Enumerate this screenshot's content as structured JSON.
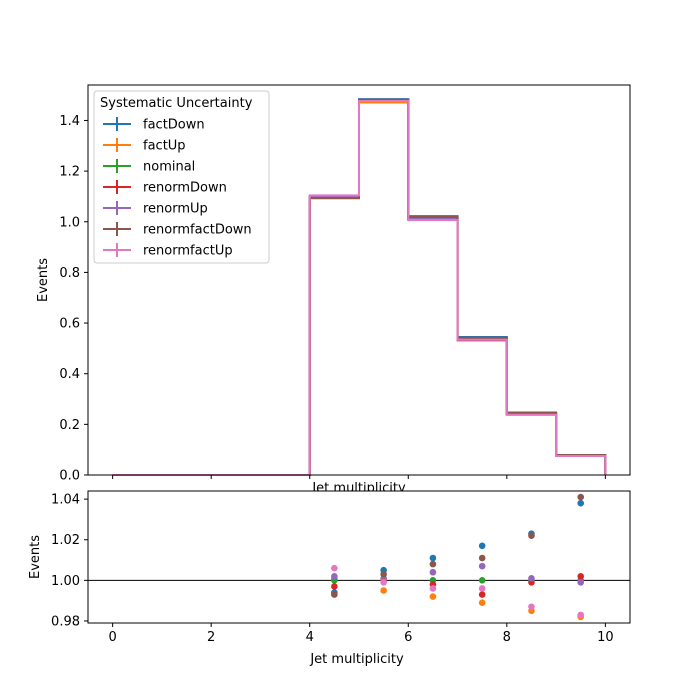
{
  "chart_data": [
    {
      "type": "step",
      "xlabel": "Jet multiplicity",
      "ylabel": "Events",
      "xlim": [
        -0.5,
        10.5
      ],
      "ylim": [
        0,
        1.54
      ],
      "xticks": [
        0,
        2,
        4,
        6,
        8,
        10
      ],
      "xtick_labels_visible": false,
      "yticks": [
        0.0,
        0.2,
        0.4,
        0.6,
        0.8,
        1.0,
        1.2,
        1.4
      ],
      "ytick_labels": [
        "0.0",
        "0.2",
        "0.4",
        "0.6",
        "0.8",
        "1.0",
        "1.2",
        "1.4"
      ],
      "bin_edges": [
        0,
        1,
        2,
        3,
        4,
        5,
        6,
        7,
        8,
        9,
        10
      ],
      "legend": {
        "title": "Systematic Uncertainty",
        "position": "top-left"
      },
      "series": [
        {
          "name": "factDown",
          "color": "#1f77b4",
          "values": [
            0,
            0,
            0,
            0,
            1.095,
            1.484,
            1.022,
            0.545,
            0.247,
            0.079
          ]
        },
        {
          "name": "factUp",
          "color": "#ff7f0e",
          "values": [
            0,
            0,
            0,
            0,
            1.099,
            1.471,
            1.009,
            0.532,
            0.238,
            0.075
          ]
        },
        {
          "name": "nominal",
          "color": "#2ca02c",
          "values": [
            0,
            0,
            0,
            0,
            1.098,
            1.478,
            1.011,
            0.536,
            0.241,
            0.076
          ]
        },
        {
          "name": "renormDown",
          "color": "#d62728",
          "values": [
            0,
            0,
            0,
            0,
            1.095,
            1.478,
            1.009,
            0.532,
            0.241,
            0.076
          ]
        },
        {
          "name": "renormUp",
          "color": "#9467bd",
          "values": [
            0,
            0,
            0,
            0,
            1.1,
            1.48,
            1.015,
            0.54,
            0.241,
            0.076
          ]
        },
        {
          "name": "renormfactDown",
          "color": "#8c564b",
          "values": [
            0,
            0,
            0,
            0,
            1.093,
            1.482,
            1.019,
            0.542,
            0.246,
            0.079
          ]
        },
        {
          "name": "renormfactUp",
          "color": "#e377c2",
          "values": [
            0,
            0,
            0,
            0,
            1.104,
            1.477,
            1.007,
            0.534,
            0.238,
            0.075
          ]
        }
      ]
    },
    {
      "type": "scatter",
      "xlabel": "Jet multiplicity",
      "ylabel": "Events",
      "xlim": [
        -0.5,
        10.5
      ],
      "ylim": [
        0.979,
        1.044
      ],
      "xticks": [
        0,
        2,
        4,
        6,
        8,
        10
      ],
      "xtick_labels": [
        "0",
        "2",
        "4",
        "6",
        "8",
        "10"
      ],
      "yticks": [
        0.98,
        1.0,
        1.02,
        1.04
      ],
      "ytick_labels": [
        "0.98",
        "1.00",
        "1.02",
        "1.04"
      ],
      "reference_line": 1.0,
      "x": [
        4.5,
        5.5,
        6.5,
        7.5,
        8.5,
        9.5
      ],
      "series": [
        {
          "name": "factDown",
          "color": "#1f77b4",
          "values": [
            0.994,
            1.005,
            1.011,
            1.017,
            1.023,
            1.038
          ]
        },
        {
          "name": "factUp",
          "color": "#ff7f0e",
          "values": [
            1.001,
            0.995,
            0.992,
            0.989,
            0.985,
            0.982
          ]
        },
        {
          "name": "nominal",
          "color": "#2ca02c",
          "values": [
            1.0,
            1.0,
            1.0,
            1.0,
            1.0,
            1.0
          ]
        },
        {
          "name": "renormDown",
          "color": "#d62728",
          "values": [
            0.997,
            1.0,
            0.998,
            0.993,
            0.999,
            1.002
          ]
        },
        {
          "name": "renormUp",
          "color": "#9467bd",
          "values": [
            1.002,
            1.001,
            1.004,
            1.007,
            1.001,
            0.999
          ]
        },
        {
          "name": "renormfactDown",
          "color": "#8c564b",
          "values": [
            0.993,
            1.003,
            1.008,
            1.011,
            1.022,
            1.041
          ]
        },
        {
          "name": "renormfactUp",
          "color": "#e377c2",
          "values": [
            1.006,
            0.999,
            0.996,
            0.996,
            0.987,
            0.983
          ]
        }
      ]
    }
  ]
}
